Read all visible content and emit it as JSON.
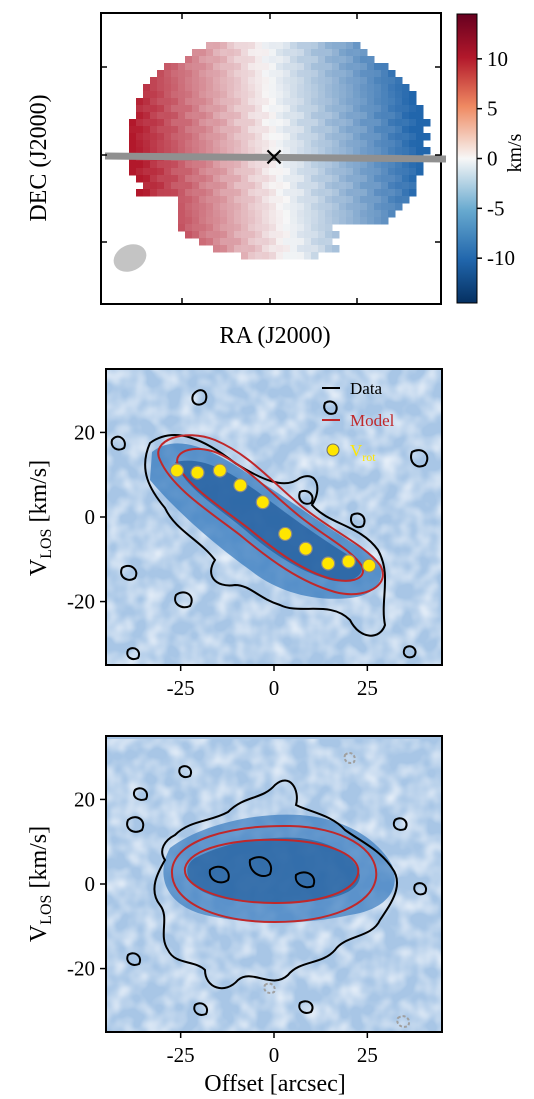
{
  "chart_data": [
    {
      "type": "heatmap",
      "panel": "velocity_map",
      "xlabel": "RA (J2000)",
      "ylabel": "DEC (J2000)",
      "colorbar": {
        "label": "km/s",
        "ticks": [
          "10",
          "5",
          "0",
          "-5",
          "-10"
        ],
        "tick_values": [
          10,
          5,
          0,
          -5,
          -10
        ],
        "range": [
          -14.5,
          14.5
        ],
        "colormap": "RdBu_r",
        "colors": {
          "pos": "#b2182b",
          "neg": "#2166ac",
          "zero": "#f7f7f7"
        }
      },
      "annotations": {
        "center_marker": "×",
        "major_axis_line_color": "#909090",
        "beam_color": "#c4c4c4"
      }
    },
    {
      "type": "heatmap",
      "panel": "pv_major_axis",
      "xlabel": "",
      "ylabel": "V_LOS [km/s]",
      "xticks": [
        -25,
        0,
        25
      ],
      "yticks": [
        20,
        0,
        -20
      ],
      "xlim": [
        -45,
        45
      ],
      "ylim": [
        -35,
        35
      ],
      "legend": {
        "position": "top-right",
        "entries": [
          {
            "label": "Data",
            "color": "#000000"
          },
          {
            "label": "Model",
            "color": "#c0282a"
          },
          {
            "label": "V",
            "sub": "rot",
            "color": "#ffe600"
          }
        ]
      },
      "rotation_curve": {
        "offset_arcsec": [
          -26,
          -20.5,
          -14.5,
          -9,
          -3,
          3,
          8.5,
          14.5,
          20,
          25.5
        ],
        "v_los_kms": [
          11,
          10.5,
          11,
          7.5,
          3.5,
          -4,
          -7.5,
          -11,
          -10.5,
          -11.5
        ]
      }
    },
    {
      "type": "heatmap",
      "panel": "pv_minor_axis",
      "xlabel": "Offset [arcsec]",
      "ylabel": "V_LOS [km/s]",
      "xticks": [
        -25,
        0,
        25
      ],
      "yticks": [
        20,
        0,
        -20
      ],
      "xlim": [
        -45,
        45
      ],
      "ylim": [
        -35,
        35
      ]
    }
  ]
}
